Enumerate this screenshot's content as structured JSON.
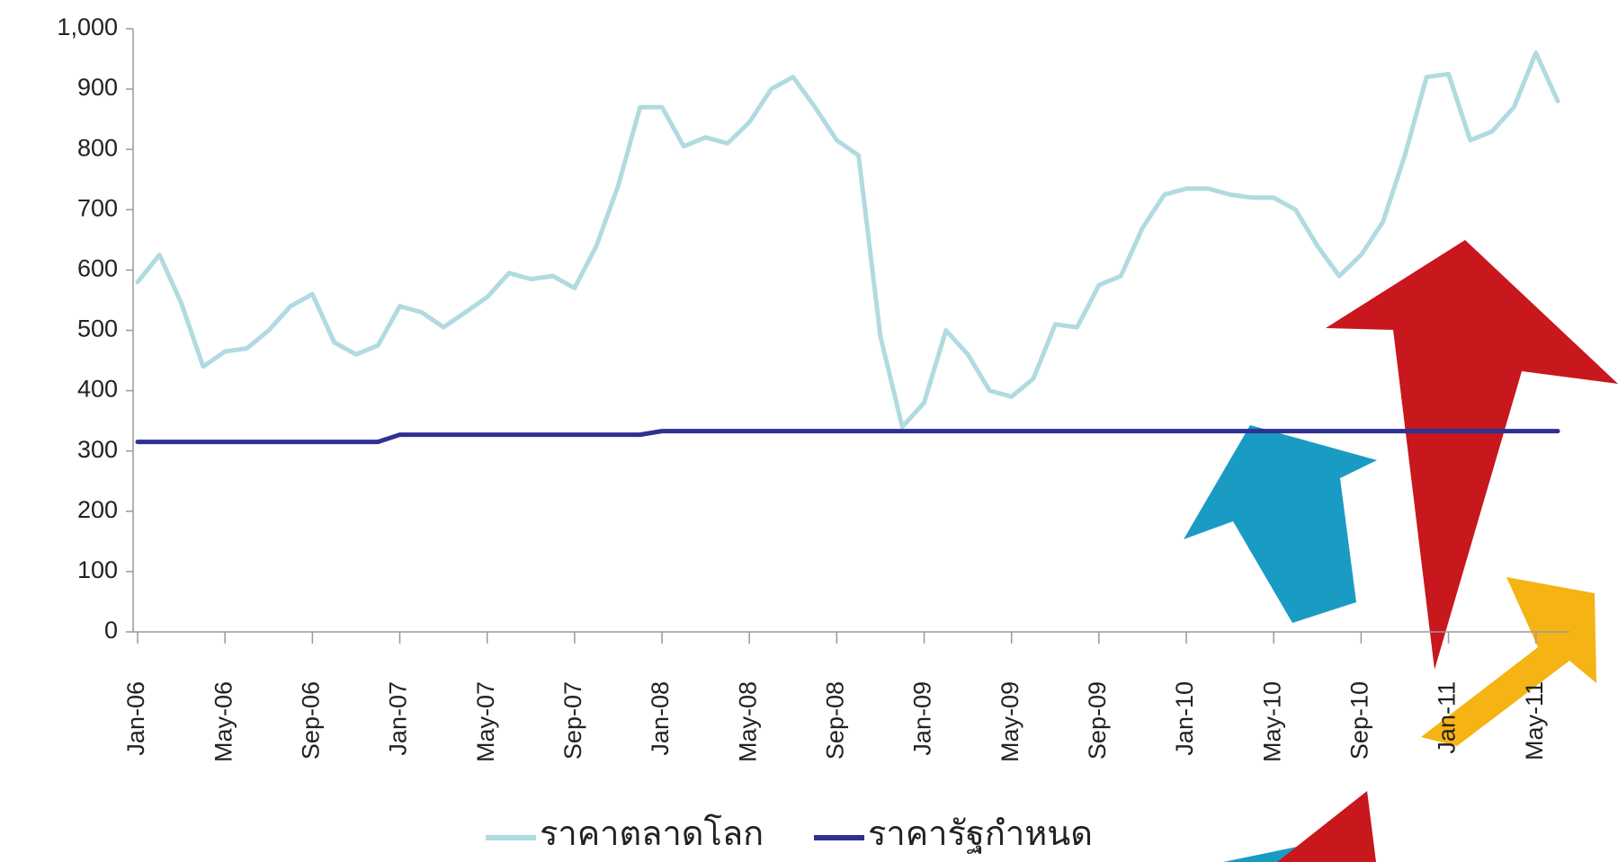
{
  "chart_data": {
    "type": "line",
    "categories": [
      "Jan-06",
      null,
      null,
      null,
      "May-06",
      null,
      null,
      null,
      "Sep-06",
      null,
      null,
      null,
      "Jan-07",
      null,
      null,
      null,
      "May-07",
      null,
      null,
      null,
      "Sep-07",
      null,
      null,
      null,
      "Jan-08",
      null,
      null,
      null,
      "May-08",
      null,
      null,
      null,
      "Sep-08",
      null,
      null,
      null,
      "Jan-09",
      null,
      null,
      null,
      "May-09",
      null,
      null,
      null,
      "Sep-09",
      null,
      null,
      null,
      "Jan-10",
      null,
      null,
      null,
      "May-10",
      null,
      null,
      null,
      "Sep-10",
      null,
      null,
      null,
      "Jan-11",
      null,
      null,
      null,
      "May-11",
      null
    ],
    "series": [
      {
        "name": "ราคาตลาดโลก",
        "color": "#b0dbe0",
        "values": [
          580,
          625,
          545,
          440,
          465,
          470,
          500,
          540,
          560,
          480,
          460,
          475,
          540,
          530,
          505,
          530,
          555,
          595,
          585,
          590,
          570,
          640,
          740,
          870,
          870,
          805,
          820,
          810,
          845,
          900,
          920,
          870,
          815,
          790,
          490,
          340,
          380,
          500,
          460,
          400,
          390,
          420,
          510,
          505,
          575,
          590,
          670,
          725,
          735,
          735,
          725,
          720,
          720,
          700,
          640,
          590,
          625,
          680,
          790,
          920,
          925,
          815,
          830,
          870,
          960,
          880
        ]
      },
      {
        "name": "ราคารัฐกำหนด",
        "color": "#2e3192",
        "values": [
          315,
          315,
          315,
          315,
          315,
          315,
          315,
          315,
          315,
          315,
          315,
          315,
          327,
          327,
          327,
          327,
          327,
          327,
          327,
          327,
          327,
          327,
          327,
          327,
          333,
          333,
          333,
          333,
          333,
          333,
          333,
          333,
          333,
          333,
          333,
          333,
          333,
          333,
          333,
          333,
          333,
          333,
          333,
          333,
          333,
          333,
          333,
          333,
          333,
          333,
          333,
          333,
          333,
          333,
          333,
          333,
          333,
          333,
          333,
          333,
          333,
          333,
          333,
          333,
          333,
          333
        ]
      }
    ],
    "ylim": [
      0,
      1000
    ],
    "yticks": [
      0,
      100,
      200,
      300,
      400,
      500,
      600,
      700,
      800,
      900,
      {
        "value": 1000,
        "label": "1,000"
      }
    ],
    "legend": "bottom"
  }
}
